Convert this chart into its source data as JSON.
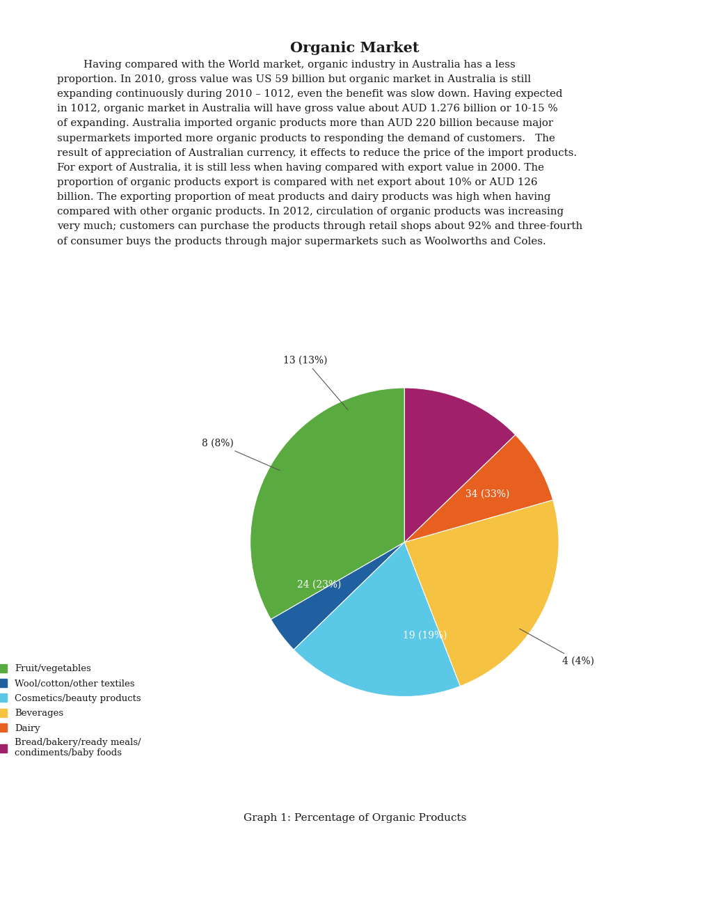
{
  "title": "Organic Market",
  "caption": "Graph 1: Percentage of Organic Products",
  "body_lines": [
    "        Having compared with the World market, organic industry in Australia has a less",
    "proportion. In 2010, gross value was US 59 billion but organic market in Australia is still",
    "expanding continuously during 2010 – 1012, even the benefit was slow down. Having expected",
    "in 1012, organic market in Australia will have gross value about AUD 1.276 billion or 10-15 %",
    "of expanding. Australia imported organic products more than AUD 220 billion because major",
    "supermarkets imported more organic products to responding the demand of customers.   The",
    "result of appreciation of Australian currency, it effects to reduce the price of the import products.",
    "For export of Australia, it is still less when having compared with export value in 2000. The",
    "proportion of organic products export is compared with net export about 10% or AUD 126",
    "billion. The exporting proportion of meat products and dairy products was high when having",
    "compared with other organic products. In 2012, circulation of organic products was increasing",
    "very much; customers can purchase the products through retail shops about 92% and three-fourth",
    "of consumer buys the products through major supermarkets such as Woolworths and Coles."
  ],
  "slices": [
    {
      "label": "Fruit/vegetables",
      "value": 34,
      "pct": 33,
      "color": "#5aab3f"
    },
    {
      "label": "Wool/cotton/other textiles",
      "value": 4,
      "pct": 4,
      "color": "#2060a0"
    },
    {
      "label": "Cosmetics/beauty products",
      "value": 19,
      "pct": 19,
      "color": "#5bc8e8"
    },
    {
      "label": "Beverages",
      "value": 24,
      "pct": 23,
      "color": "#f5c242"
    },
    {
      "label": "Dairy",
      "value": 8,
      "pct": 8,
      "color": "#e86020"
    },
    {
      "label": "Bread/bakery/ready meals/\ncondiments/baby foods",
      "value": 13,
      "pct": 13,
      "color": "#a0206a"
    }
  ],
  "startangle": 90,
  "background_color": "#ffffff"
}
